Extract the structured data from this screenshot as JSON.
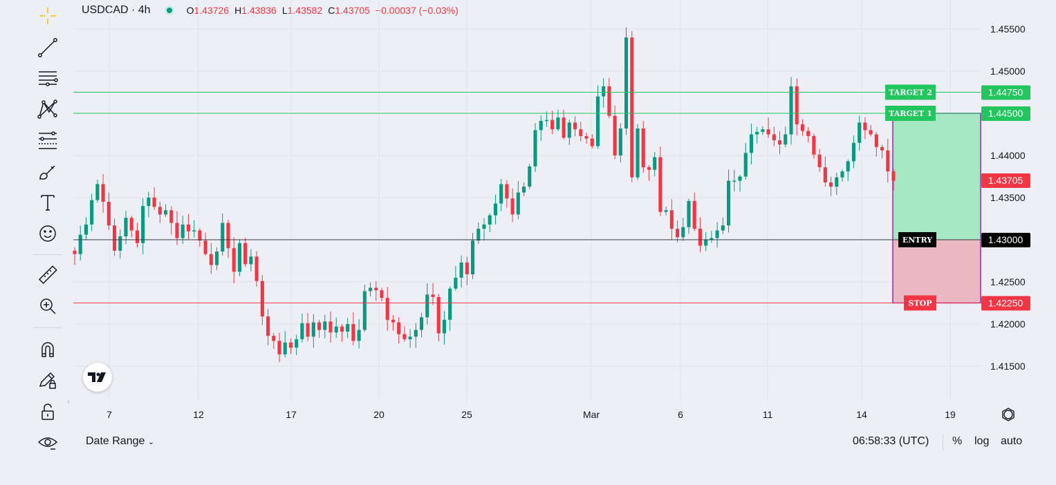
{
  "header": {
    "symbol": "USDCAD · 4h",
    "open_label": "O",
    "open": "1.43726",
    "high_label": "H",
    "high": "1.43836",
    "low_label": "L",
    "low": "1.43582",
    "close_label": "C",
    "close": "1.43705",
    "change": "−0.00037 (−0.03%)"
  },
  "toolbar": {
    "icons": [
      "crosshair-icon",
      "trend-line-icon",
      "horizontal-lines-icon",
      "pattern-icon",
      "fib-levels-icon",
      "brush-icon",
      "text-icon",
      "emoji-icon",
      "ruler-icon",
      "zoom-in-icon",
      "magnet-icon",
      "pencil-lock-icon",
      "lock-icon",
      "eye-icon"
    ]
  },
  "price_axis": {
    "ticks": [
      "1.45500",
      "1.45000",
      "1.44500",
      "1.44000",
      "1.43500",
      "1.43000",
      "1.42500",
      "1.42000",
      "1.41500"
    ]
  },
  "time_axis": {
    "ticks": [
      "7",
      "12",
      "17",
      "20",
      "25",
      "Mar",
      "6",
      "11",
      "14",
      "19"
    ]
  },
  "levels": [
    {
      "name": "TARGET 2",
      "price": "1.44750",
      "color": "#22c55e"
    },
    {
      "name": "TARGET 1",
      "price": "1.44500",
      "color": "#22c55e"
    },
    {
      "name": "ENTRY",
      "price": "1.43000",
      "color": "#000000"
    },
    {
      "name": "STOP",
      "price": "1.42250",
      "color": "#f23645"
    }
  ],
  "current_price": "1.43705",
  "colors": {
    "up": "#089981",
    "down": "#f23645",
    "target_fill": "#a7e6c2",
    "stop_fill": "#eab8c2",
    "box_border": "#9c27b0"
  },
  "bottom": {
    "date_range": "Date Range",
    "time": "06:58:33 (UTC)",
    "percent": "%",
    "log": "log",
    "auto": "auto"
  },
  "chart_data": {
    "type": "candlestick",
    "ylim": [
      1.411,
      1.4565
    ],
    "close_values": [
      1.4283,
      1.4306,
      1.4318,
      1.4347,
      1.4366,
      1.4345,
      1.4317,
      1.4287,
      1.4304,
      1.4326,
      1.4311,
      1.4296,
      1.434,
      1.435,
      1.4339,
      1.433,
      1.4335,
      1.432,
      1.4302,
      1.4318,
      1.431,
      1.4311,
      1.4299,
      1.4283,
      1.427,
      1.4286,
      1.432,
      1.429,
      1.4262,
      1.4296,
      1.4271,
      1.428,
      1.4251,
      1.4209,
      1.4186,
      1.418,
      1.4164,
      1.4178,
      1.4172,
      1.4182,
      1.4201,
      1.4185,
      1.4202,
      1.4193,
      1.4203,
      1.419,
      1.4197,
      1.4191,
      1.42,
      1.418,
      1.4193,
      1.4239,
      1.4243,
      1.424,
      1.4231,
      1.4205,
      1.4202,
      1.4188,
      1.4182,
      1.4185,
      1.4193,
      1.4208,
      1.4235,
      1.4232,
      1.4189,
      1.4205,
      1.4242,
      1.4255,
      1.4273,
      1.4259,
      1.4299,
      1.4313,
      1.4318,
      1.4329,
      1.4343,
      1.4366,
      1.4349,
      1.433,
      1.4356,
      1.4363,
      1.4387,
      1.443,
      1.4441,
      1.4442,
      1.4431,
      1.4445,
      1.4421,
      1.4439,
      1.4431,
      1.4423,
      1.442,
      1.4411,
      1.447,
      1.4482,
      1.4447,
      1.44,
      1.4432,
      1.454,
      1.4374,
      1.4432,
      1.4386,
      1.4383,
      1.4398,
      1.4333,
      1.4335,
      1.4313,
      1.4303,
      1.4315,
      1.4346,
      1.4313,
      1.4293,
      1.43,
      1.4302,
      1.4311,
      1.4317,
      1.437,
      1.437,
      1.4375,
      1.4403,
      1.4425,
      1.4428,
      1.4431,
      1.4425,
      1.4418,
      1.4413,
      1.4425,
      1.4482,
      1.4437,
      1.4429,
      1.4423,
      1.4401,
      1.4386,
      1.4368,
      1.4363,
      1.4374,
      1.4381,
      1.4393,
      1.4415,
      1.4439,
      1.443,
      1.4425,
      1.441,
      1.4406,
      1.4381,
      1.437
    ]
  }
}
